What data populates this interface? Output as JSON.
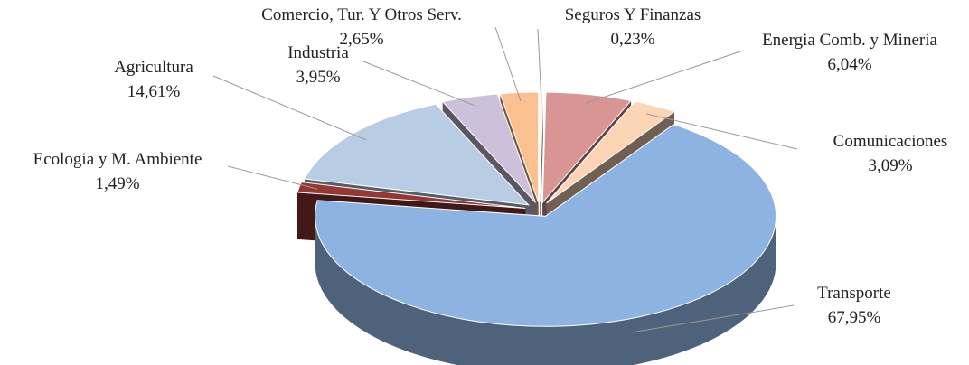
{
  "chart_data": {
    "type": "pie3d",
    "categories": [
      "Seguros Y Finanzas",
      "Energia Comb. y Mineria",
      "Comunicaciones",
      "Transporte",
      "Ecologia y M. Ambiente",
      "Agricultura",
      "Industria",
      "Comercio, Tur. Y  Otros Serv."
    ],
    "values": [
      0.23,
      6.04,
      3.09,
      67.95,
      1.49,
      14.61,
      3.95,
      2.65
    ],
    "value_labels": [
      "0,23%",
      "6,04%",
      "3,09%",
      "67,95%",
      "1,49%",
      "14,61%",
      "3,95%",
      "2,65%"
    ],
    "colors": [
      "#fde9d0",
      "#d99594",
      "#fbd5b5",
      "#8db3e2",
      "#953735",
      "#b8cce4",
      "#ccc0da",
      "#fac08f"
    ]
  }
}
